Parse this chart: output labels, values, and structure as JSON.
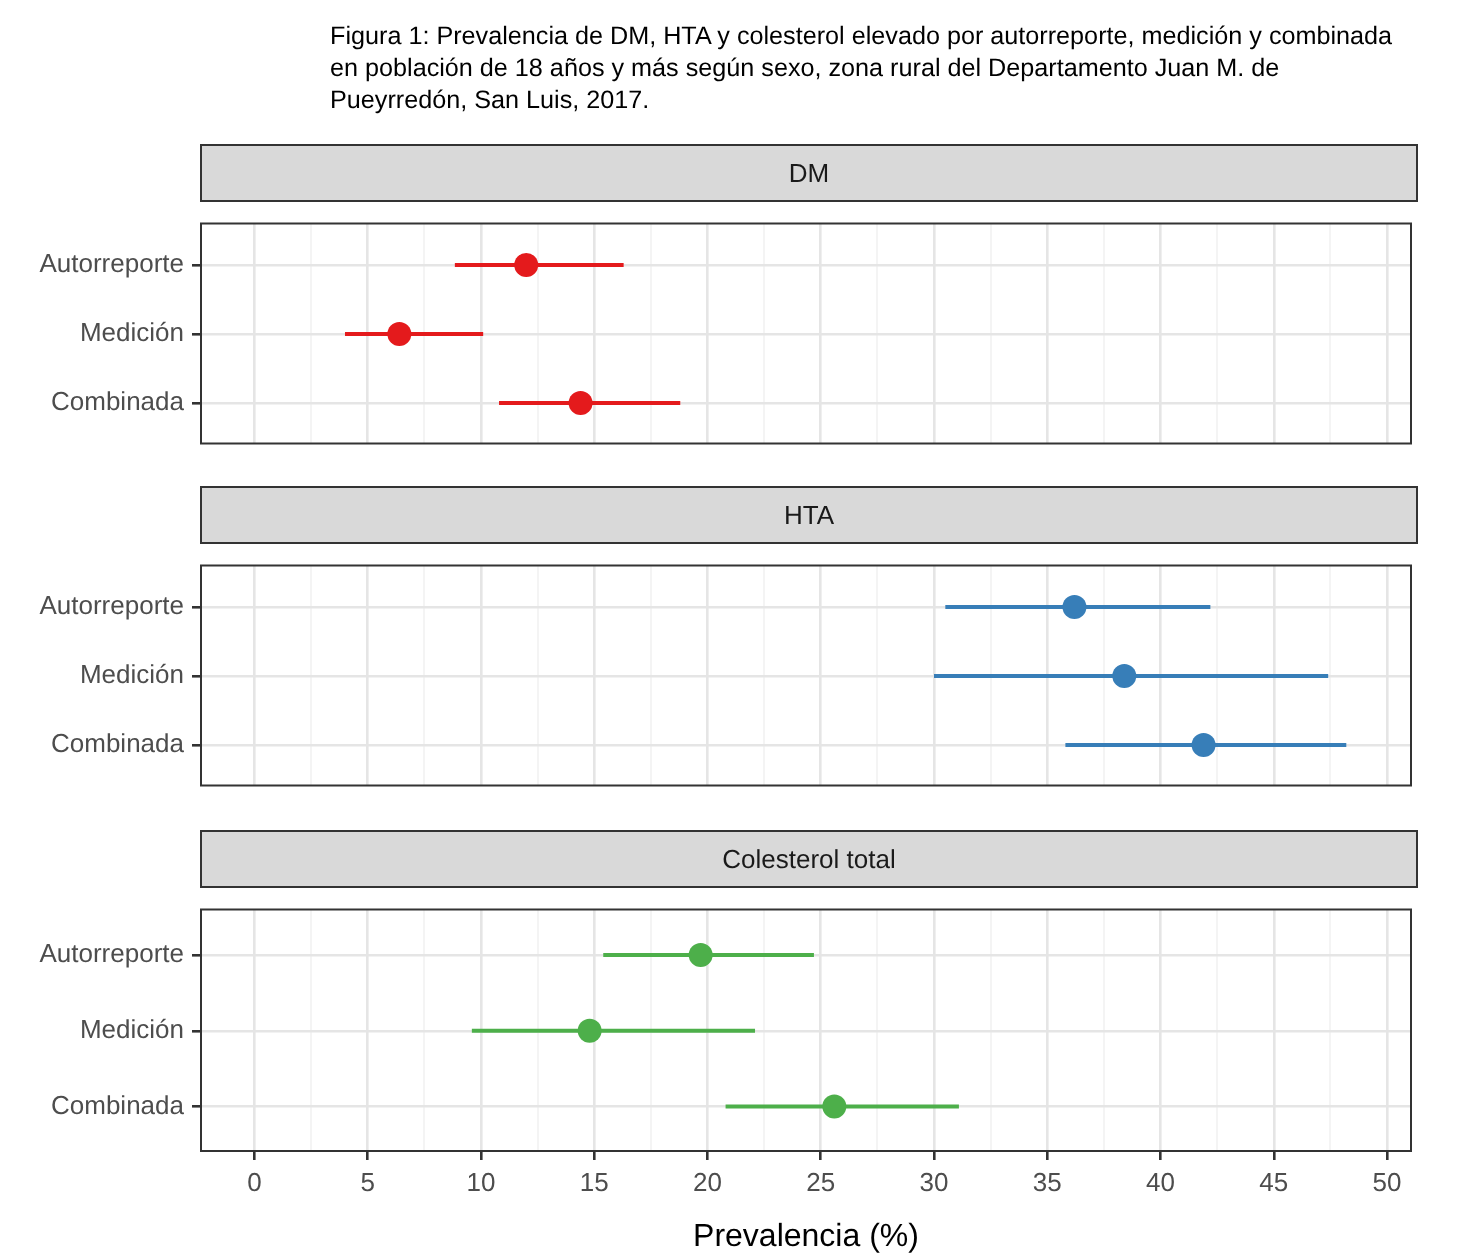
{
  "chart_data": [
    {
      "type": "scatter",
      "orientation": "horizontal",
      "title": "DM",
      "annotations": [
        "Figura 1: Prevalencia de DM, HTA y colesterol elevado por autorreporte, medición y combinada en población de 18 años y más según sexo, zona rural del Departamento Juan M. de Pueyrredón, San Luis, 2017."
      ],
      "categories": [
        "Autorreporte",
        "Medición",
        "Combinada"
      ],
      "color": "#e41a1c",
      "values": [
        12.0,
        6.4,
        14.4
      ],
      "errors": [
        [
          8.85,
          16.3
        ],
        [
          4.0,
          10.1
        ],
        [
          10.8,
          18.8
        ]
      ],
      "xlim": [
        -2.4,
        51.1
      ],
      "xticks": [
        0,
        {
          "value": 2.5,
          "label": null
        },
        5,
        {
          "value": 7.5,
          "label": null
        },
        10,
        {
          "value": 12.5,
          "label": null
        },
        15,
        {
          "value": 17.5,
          "label": null
        },
        20,
        {
          "value": 22.5,
          "label": null
        },
        25,
        {
          "value": 27.5,
          "label": null
        },
        30,
        {
          "value": 32.5,
          "label": null
        },
        35,
        {
          "value": 37.5,
          "label": null
        },
        40,
        {
          "value": 42.5,
          "label": null
        },
        45,
        {
          "value": 47.5,
          "label": null
        },
        50
      ],
      "grid": true,
      "legend": false,
      "marker": "circle",
      "tick_labels": "y"
    },
    {
      "type": "scatter",
      "orientation": "horizontal",
      "title": "HTA",
      "categories": [
        "Autorreporte",
        "Medición",
        "Combinada"
      ],
      "color": "#377eb8",
      "values": [
        36.2,
        38.4,
        41.9
      ],
      "errors": [
        [
          30.5,
          42.2
        ],
        [
          30.0,
          47.4
        ],
        [
          35.8,
          48.2
        ]
      ],
      "xlim": [
        -2.4,
        51.1
      ],
      "xticks": [
        0,
        {
          "value": 2.5,
          "label": null
        },
        5,
        {
          "value": 7.5,
          "label": null
        },
        10,
        {
          "value": 12.5,
          "label": null
        },
        15,
        {
          "value": 17.5,
          "label": null
        },
        20,
        {
          "value": 22.5,
          "label": null
        },
        25,
        {
          "value": 27.5,
          "label": null
        },
        30,
        {
          "value": 32.5,
          "label": null
        },
        35,
        {
          "value": 37.5,
          "label": null
        },
        40,
        {
          "value": 42.5,
          "label": null
        },
        45,
        {
          "value": 47.5,
          "label": null
        },
        50
      ],
      "grid": true,
      "legend": false,
      "marker": "circle",
      "tick_labels": "y"
    },
    {
      "type": "scatter",
      "orientation": "horizontal",
      "title": "Colesterol total",
      "xlabel": "Prevalencia (%)",
      "categories": [
        "Autorreporte",
        "Medición",
        "Combinada"
      ],
      "color": "#4daf4a",
      "values": [
        19.7,
        14.8,
        25.6
      ],
      "errors": [
        [
          15.4,
          24.7
        ],
        [
          9.6,
          22.1
        ],
        [
          20.8,
          31.1
        ]
      ],
      "xlim": [
        -2.4,
        51.1
      ],
      "xticks": [
        0,
        {
          "value": 2.5,
          "label": null
        },
        5,
        {
          "value": 7.5,
          "label": null
        },
        10,
        {
          "value": 12.5,
          "label": null
        },
        15,
        {
          "value": 17.5,
          "label": null
        },
        20,
        {
          "value": 22.5,
          "label": null
        },
        25,
        {
          "value": 27.5,
          "label": null
        },
        30,
        {
          "value": 32.5,
          "label": null
        },
        35,
        {
          "value": 37.5,
          "label": null
        },
        40,
        {
          "value": 42.5,
          "label": null
        },
        45,
        {
          "value": 47.5,
          "label": null
        },
        50
      ],
      "grid": true,
      "legend": false,
      "marker": "circle"
    }
  ]
}
